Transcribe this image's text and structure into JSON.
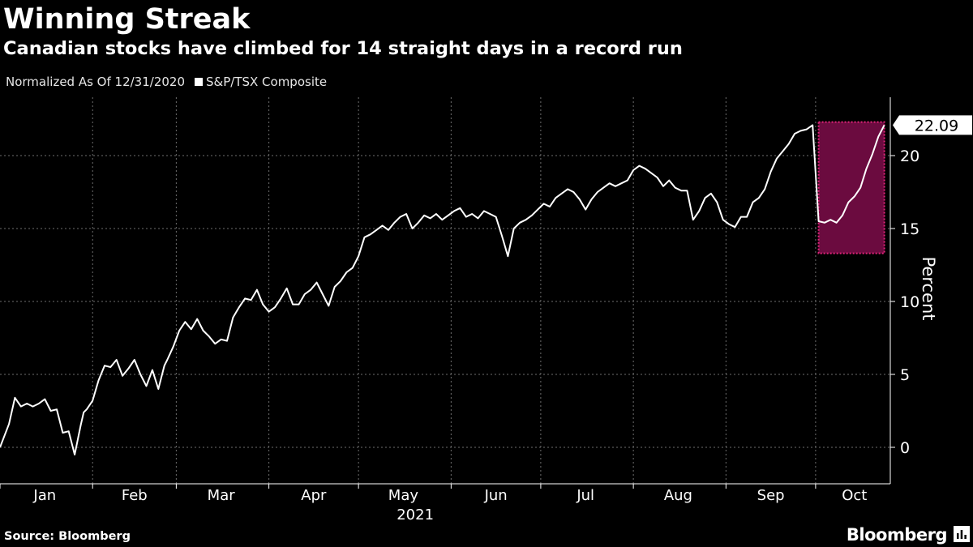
{
  "title": "Winning Streak",
  "subtitle": "Canadian stocks have climbed for 14 straight days in a record run",
  "legend": {
    "normalization": "Normalized As Of 12/31/2020",
    "series_name": "S&P/TSX Composite"
  },
  "source": "Source: Bloomberg",
  "brand": "Bloomberg",
  "brand_icon": "chart-icon",
  "colors": {
    "background": "#000000",
    "line": "#ffffff",
    "grid": "#6e6e6e",
    "highlight_fill": "#6b0b3f",
    "highlight_border": "#e0237a"
  },
  "chart_data": {
    "type": "line",
    "title": "Winning Streak",
    "subtitle": "Canadian stocks have climbed for 14 straight days in a record run",
    "xlabel": "2021",
    "ylabel": "Percent",
    "ylim": [
      -2.5,
      24
    ],
    "yticks": [
      0,
      5,
      10,
      15,
      20
    ],
    "xlim": [
      "2021-01-01",
      "2021-10-26"
    ],
    "x_tick_labels": [
      "Jan",
      "Feb",
      "Mar",
      "Apr",
      "May",
      "Jun",
      "Jul",
      "Aug",
      "Sep",
      "Oct"
    ],
    "x_tick_dates": [
      "2021-01-01",
      "2021-02-01",
      "2021-03-01",
      "2021-04-01",
      "2021-05-01",
      "2021-06-01",
      "2021-07-01",
      "2021-08-01",
      "2021-09-01",
      "2021-10-01"
    ],
    "x_label_dates": [
      "2021-01-16",
      "2021-02-15",
      "2021-03-16",
      "2021-04-16",
      "2021-05-16",
      "2021-06-16",
      "2021-07-16",
      "2021-08-16",
      "2021-09-16",
      "2021-10-14"
    ],
    "grid": true,
    "last_value_label": "22.09",
    "highlight": {
      "x_start": "2021-10-02",
      "x_end": "2021-10-24",
      "y_bottom": 13.3,
      "y_top": 22.3
    },
    "series": [
      {
        "name": "S&P/TSX Composite",
        "x": [
          "2021-01-01",
          "2021-01-04",
          "2021-01-06",
          "2021-01-08",
          "2021-01-10",
          "2021-01-12",
          "2021-01-14",
          "2021-01-16",
          "2021-01-18",
          "2021-01-20",
          "2021-01-22",
          "2021-01-24",
          "2021-01-26",
          "2021-01-27",
          "2021-01-28",
          "2021-01-29",
          "2021-01-30",
          "2021-02-01",
          "2021-02-03",
          "2021-02-05",
          "2021-02-07",
          "2021-02-09",
          "2021-02-11",
          "2021-02-13",
          "2021-02-15",
          "2021-02-17",
          "2021-02-19",
          "2021-02-21",
          "2021-02-23",
          "2021-02-24",
          "2021-02-25",
          "2021-02-26",
          "2021-02-28",
          "2021-03-02",
          "2021-03-04",
          "2021-03-06",
          "2021-03-08",
          "2021-03-10",
          "2021-03-12",
          "2021-03-14",
          "2021-03-16",
          "2021-03-18",
          "2021-03-20",
          "2021-03-22",
          "2021-03-24",
          "2021-03-26",
          "2021-03-28",
          "2021-03-30",
          "2021-04-01",
          "2021-04-03",
          "2021-04-05",
          "2021-04-07",
          "2021-04-09",
          "2021-04-11",
          "2021-04-13",
          "2021-04-15",
          "2021-04-17",
          "2021-04-19",
          "2021-04-21",
          "2021-04-23",
          "2021-04-25",
          "2021-04-27",
          "2021-04-29",
          "2021-05-01",
          "2021-05-03",
          "2021-05-05",
          "2021-05-07",
          "2021-05-09",
          "2021-05-11",
          "2021-05-13",
          "2021-05-15",
          "2021-05-17",
          "2021-05-19",
          "2021-05-21",
          "2021-05-23",
          "2021-05-25",
          "2021-05-27",
          "2021-05-29",
          "2021-05-31",
          "2021-06-02",
          "2021-06-04",
          "2021-06-06",
          "2021-06-08",
          "2021-06-10",
          "2021-06-12",
          "2021-06-14",
          "2021-06-16",
          "2021-06-18",
          "2021-06-20",
          "2021-06-22",
          "2021-06-24",
          "2021-06-26",
          "2021-06-28",
          "2021-06-30",
          "2021-07-02",
          "2021-07-04",
          "2021-07-06",
          "2021-07-08",
          "2021-07-10",
          "2021-07-12",
          "2021-07-14",
          "2021-07-16",
          "2021-07-18",
          "2021-07-20",
          "2021-07-22",
          "2021-07-24",
          "2021-07-26",
          "2021-07-28",
          "2021-07-30",
          "2021-08-01",
          "2021-08-03",
          "2021-08-05",
          "2021-08-07",
          "2021-08-09",
          "2021-08-11",
          "2021-08-13",
          "2021-08-15",
          "2021-08-17",
          "2021-08-19",
          "2021-08-21",
          "2021-08-23",
          "2021-08-25",
          "2021-08-27",
          "2021-08-29",
          "2021-08-31",
          "2021-09-02",
          "2021-09-04",
          "2021-09-06",
          "2021-09-08",
          "2021-09-10",
          "2021-09-12",
          "2021-09-14",
          "2021-09-16",
          "2021-09-18",
          "2021-09-20",
          "2021-09-22",
          "2021-09-24",
          "2021-09-26",
          "2021-09-28",
          "2021-09-30",
          "2021-10-02",
          "2021-10-04",
          "2021-10-06",
          "2021-10-08",
          "2021-10-10",
          "2021-10-12",
          "2021-10-14",
          "2021-10-16",
          "2021-10-18",
          "2021-10-20",
          "2021-10-22",
          "2021-10-24"
        ],
        "values": [
          0.0,
          1.6,
          3.4,
          2.8,
          3.0,
          2.8,
          3.0,
          3.3,
          2.5,
          2.6,
          1.0,
          1.1,
          -0.5,
          0.5,
          1.5,
          2.4,
          2.6,
          3.2,
          4.6,
          5.6,
          5.5,
          6.0,
          4.9,
          5.4,
          6.0,
          5.0,
          4.2,
          5.3,
          4.0,
          4.8,
          5.6,
          6.0,
          6.9,
          8.0,
          8.6,
          8.1,
          8.8,
          8.0,
          7.6,
          7.1,
          7.4,
          7.3,
          8.9,
          9.6,
          10.2,
          10.1,
          10.8,
          9.8,
          9.3,
          9.6,
          10.2,
          10.9,
          9.8,
          9.8,
          10.5,
          10.8,
          11.3,
          10.5,
          9.7,
          11.0,
          11.4,
          12.0,
          12.3,
          13.1,
          14.4,
          14.6,
          14.9,
          15.2,
          14.9,
          15.4,
          15.8,
          16.0,
          15.0,
          15.4,
          15.9,
          15.7,
          16.0,
          15.6,
          15.9,
          16.2,
          16.4,
          15.8,
          16.0,
          15.7,
          16.2,
          16.0,
          15.8,
          14.5,
          13.1,
          15.0,
          15.4,
          15.6,
          15.9,
          16.3,
          16.7,
          16.5,
          17.1,
          17.4,
          17.7,
          17.5,
          17.0,
          16.3,
          17.0,
          17.5,
          17.8,
          18.1,
          17.9,
          18.1,
          18.3,
          19.0,
          19.3,
          19.1,
          18.8,
          18.5,
          17.9,
          18.3,
          17.8,
          17.6,
          17.6,
          15.6,
          16.2,
          17.1,
          17.4,
          16.8,
          15.6,
          15.3,
          15.1,
          15.8,
          15.8,
          16.8,
          17.1,
          17.7,
          18.9,
          19.8,
          20.3,
          20.8,
          21.5,
          21.7,
          21.8,
          22.09,
          15.5,
          15.4,
          15.6,
          15.4,
          15.9,
          16.8,
          17.2,
          17.8,
          19.1,
          20.1,
          21.3,
          22.09
        ]
      }
    ]
  }
}
